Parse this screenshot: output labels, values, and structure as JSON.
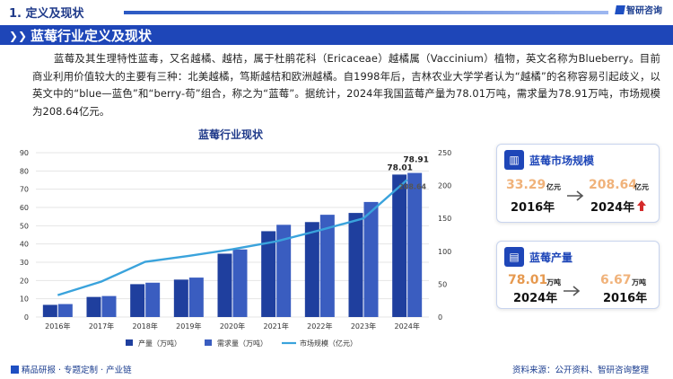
{
  "header": {
    "section": "1. 定义及现状",
    "logo": "智研咨询",
    "banner_title": "蓝莓行业定义及现状"
  },
  "intro": "蓝莓及其生理特性蓝毒，又名越橘、越桔，属于杜鹃花科（Ericaceae）越橘属（Vaccinium）植物，英文名称为Blueberry。目前商业利用价值较大的主要有三种：北美越橘，笃斯越桔和欧洲越橘。自1998年后，吉林农业大学学者认为“越橘”的名称容易引起歧义，以英文中的“blue—蓝色”和“berry-苟”组合，称之为“蓝莓”。据统计，2024年我国蓝莓产量为78.01万吨，需求量为78.91万吨，市场规模为208.64亿元。",
  "chart_data": {
    "type": "bar",
    "title": "蓝莓行业现状",
    "categories": [
      "2016年",
      "2017年",
      "2018年",
      "2019年",
      "2020年",
      "2021年",
      "2022年",
      "2023年",
      "2024年"
    ],
    "series": [
      {
        "name": "产量（万吨）",
        "type": "bar",
        "axis": "left",
        "color": "#1f3f9e",
        "values": [
          6.67,
          11.0,
          18.0,
          20.5,
          34.7,
          47.0,
          52.0,
          57.0,
          78.01
        ]
      },
      {
        "name": "需求量（万吨）",
        "type": "bar",
        "axis": "left",
        "color": "#3a5dc0",
        "values": [
          7.1,
          11.5,
          18.8,
          21.6,
          37.0,
          50.5,
          56.0,
          63.0,
          78.91
        ]
      },
      {
        "name": "市场规模（亿元）",
        "type": "line",
        "axis": "right",
        "color": "#3aa3dc",
        "values": [
          33.29,
          54.0,
          84.0,
          93.0,
          103.0,
          115.0,
          132.0,
          150.0,
          208.64
        ]
      }
    ],
    "y_left": {
      "min": 0,
      "max": 90,
      "ticks": [
        0,
        10,
        20,
        30,
        40,
        50,
        60,
        70,
        80,
        90
      ]
    },
    "y_right": {
      "min": 0,
      "max": 250,
      "ticks": [
        0,
        50,
        100,
        150,
        200,
        250
      ]
    },
    "data_labels": {
      "prod_2024": "78.01",
      "demand_2024": "78.91",
      "market_2024": "208.64"
    },
    "legend": [
      "产量（万吨）",
      "需求量（万吨）",
      "市场规模（亿元）"
    ],
    "legend_position": "bottom"
  },
  "cards": {
    "market": {
      "title": "蓝莓市场规模",
      "left_value": "33.29",
      "left_unit": "亿元",
      "left_year": "2016年",
      "right_value": "208.64",
      "right_unit": "亿元",
      "right_year": "2024年"
    },
    "output": {
      "title": "蓝莓产量",
      "left_value": "78.01",
      "left_unit": "万吨",
      "left_year": "2024年",
      "right_value": "6.67",
      "right_unit": "万吨",
      "right_year": "2016年"
    }
  },
  "footer": {
    "left": "精品研报 · 专题定制 · 产业链",
    "right": "资料来源：公开资料、智研咨询整理"
  },
  "colors": {
    "brand": "#1e46b8",
    "accent_orange": "#f0b27a",
    "up_arrow": "#d42b2b"
  }
}
